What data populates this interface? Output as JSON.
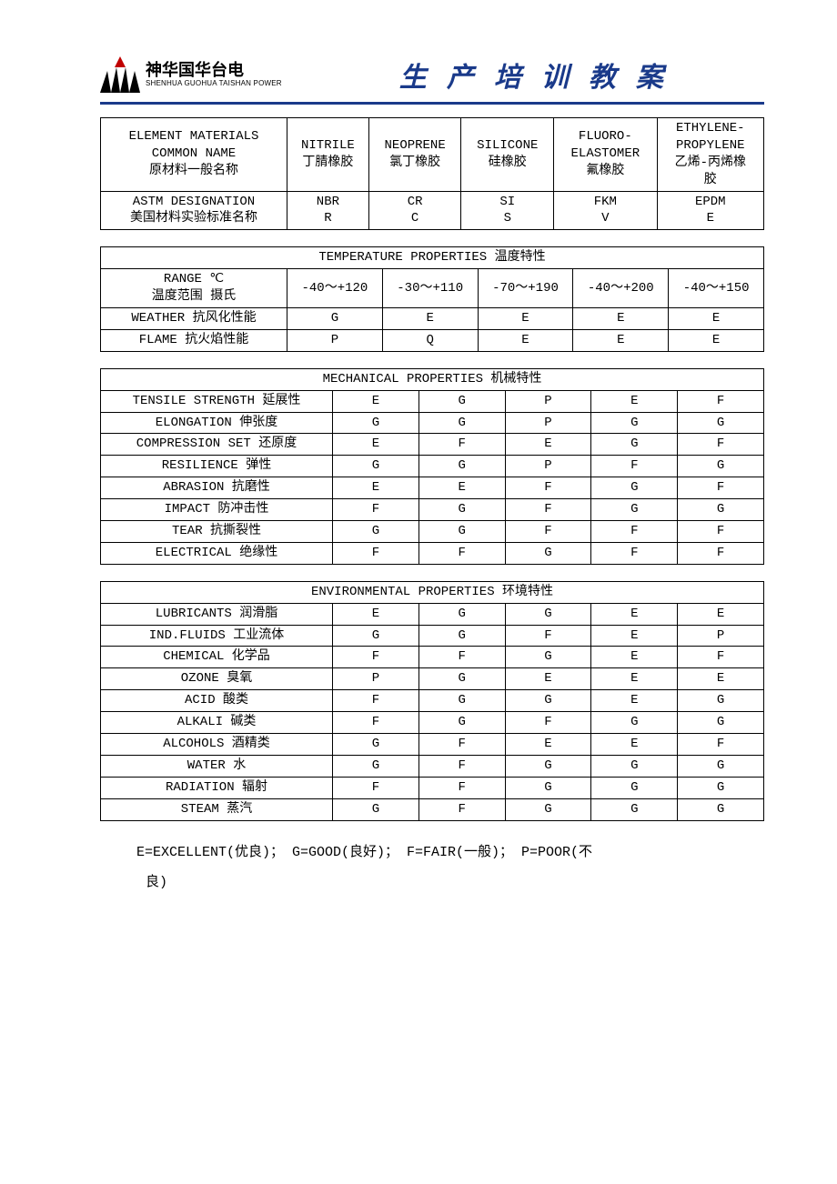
{
  "header": {
    "logo_cn": "神华国华台电",
    "logo_en": "SHENHUA GUOHUA TAISHAN POWER",
    "title": "生产培训教案"
  },
  "table1": {
    "rows": [
      {
        "label_lines": [
          "ELEMENT MATERIALS",
          "COMMON NAME",
          "原材料一般名称"
        ],
        "cells": [
          [
            "NITRILE",
            "丁腈橡胶"
          ],
          [
            "NEOPRENE",
            "氯丁橡胶"
          ],
          [
            "SILICONE",
            "硅橡胶"
          ],
          [
            "FLUORO-",
            "ELASTOMER",
            "氟橡胶"
          ],
          [
            "ETHYLENE-",
            "PROPYLENE",
            "乙烯-丙烯橡",
            "胶"
          ]
        ]
      },
      {
        "label_lines": [
          "ASTM DESIGNATION",
          "美国材料实验标准名称"
        ],
        "cells": [
          [
            "NBR",
            "R"
          ],
          [
            "CR",
            "C"
          ],
          [
            "SI",
            "S"
          ],
          [
            "FKM",
            "V"
          ],
          [
            "EPDM",
            "E"
          ]
        ]
      }
    ]
  },
  "table2": {
    "title": "TEMPERATURE PROPERTIES 温度特性",
    "rows": [
      {
        "label_lines": [
          "RANGE ℃",
          "温度范围 摄氏"
        ],
        "cells": [
          "-40～+120",
          "-30～+110",
          "-70～+190",
          "-40～+200",
          "-40～+150"
        ]
      },
      {
        "label_lines": [
          "WEATHER 抗风化性能"
        ],
        "cells": [
          "G",
          "E",
          "E",
          "E",
          "E"
        ]
      },
      {
        "label_lines": [
          "FLAME 抗火焰性能"
        ],
        "cells": [
          "P",
          "Q",
          "E",
          "E",
          "E"
        ]
      }
    ]
  },
  "table3": {
    "title": "MECHANICAL PROPERTIES 机械特性",
    "rows": [
      {
        "label": "TENSILE STRENGTH 延展性",
        "cells": [
          "E",
          "G",
          "P",
          "E",
          "F"
        ]
      },
      {
        "label": "ELONGATION 伸张度",
        "cells": [
          "G",
          "G",
          "P",
          "G",
          "G"
        ]
      },
      {
        "label": "COMPRESSION SET 还原度",
        "cells": [
          "E",
          "F",
          "E",
          "G",
          "F"
        ]
      },
      {
        "label": "RESILIENCE 弹性",
        "cells": [
          "G",
          "G",
          "P",
          "F",
          "G"
        ]
      },
      {
        "label": "ABRASION 抗磨性",
        "cells": [
          "E",
          "E",
          "F",
          "G",
          "F"
        ]
      },
      {
        "label": "IMPACT 防冲击性",
        "cells": [
          "F",
          "G",
          "F",
          "G",
          "G"
        ]
      },
      {
        "label": "TEAR 抗撕裂性",
        "cells": [
          "G",
          "G",
          "F",
          "F",
          "F"
        ]
      },
      {
        "label": "ELECTRICAL 绝缘性",
        "cells": [
          "F",
          "F",
          "G",
          "F",
          "F"
        ]
      }
    ]
  },
  "table4": {
    "title": "ENVIRONMENTAL PROPERTIES 环境特性",
    "rows": [
      {
        "label": "LUBRICANTS 润滑脂",
        "cells": [
          "E",
          "G",
          "G",
          "E",
          "E"
        ]
      },
      {
        "label": "IND.FLUIDS 工业流体",
        "cells": [
          "G",
          "G",
          "F",
          "E",
          "P"
        ]
      },
      {
        "label": "CHEMICAL 化学品",
        "cells": [
          "F",
          "F",
          "G",
          "E",
          "F"
        ]
      },
      {
        "label": "OZONE 臭氧",
        "cells": [
          "P",
          "G",
          "E",
          "E",
          "E"
        ]
      },
      {
        "label": "ACID 酸类",
        "cells": [
          "F",
          "G",
          "G",
          "E",
          "G"
        ]
      },
      {
        "label": "ALKALI 碱类",
        "cells": [
          "F",
          "G",
          "F",
          "G",
          "G"
        ]
      },
      {
        "label": "ALCOHOLS 酒精类",
        "cells": [
          "G",
          "F",
          "E",
          "E",
          "F"
        ]
      },
      {
        "label": "WATER 水",
        "cells": [
          "G",
          "F",
          "G",
          "G",
          "G"
        ]
      },
      {
        "label": "RADIATION 辐射",
        "cells": [
          "F",
          "F",
          "G",
          "G",
          "G"
        ]
      },
      {
        "label": "STEAM 蒸汽",
        "cells": [
          "G",
          "F",
          "G",
          "G",
          "G"
        ]
      }
    ]
  },
  "legend": {
    "line1": "E=EXCELLENT(优良)； G=GOOD(良好)； F=FAIR(一般)； P=POOR(不",
    "line2": "良)"
  }
}
